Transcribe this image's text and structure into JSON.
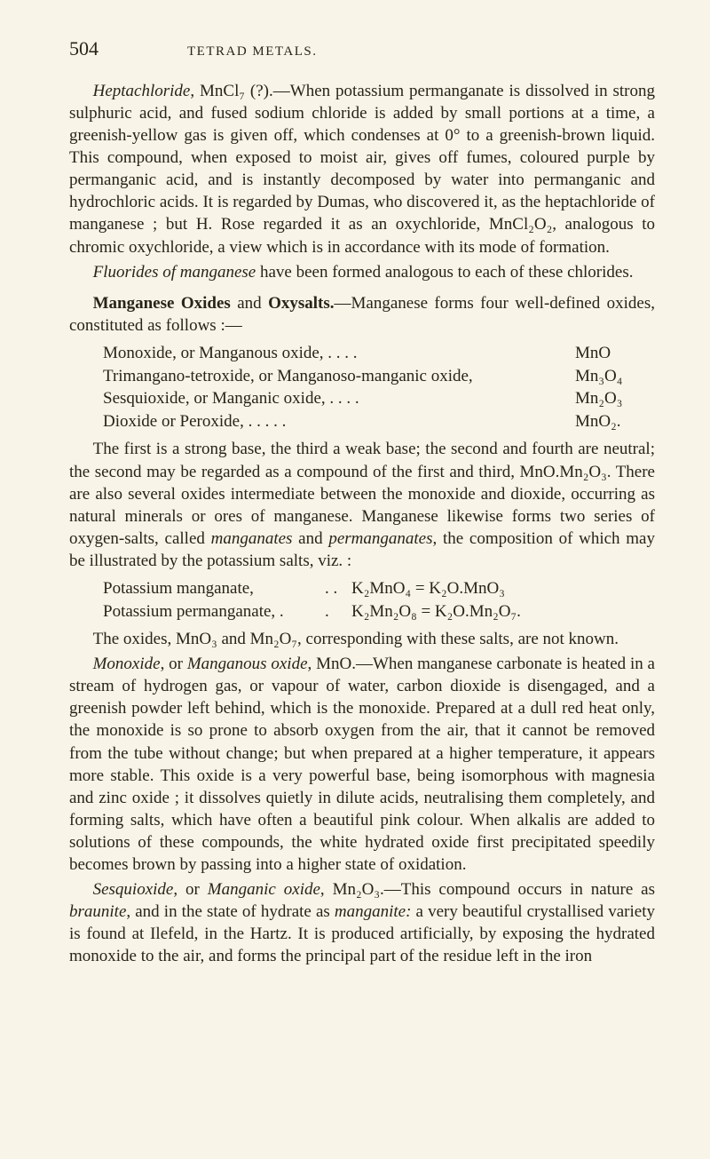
{
  "page_number": "504",
  "running_head": "TETRAD METALS.",
  "para1": "Heptachloride, MnCl₇ (?).—When potassium permanganate is dissolved in strong sulphuric acid, and fused sodium chloride is added by small portions at a time, a greenish-yellow gas is given off, which condenses at 0° to a greenish-brown liquid. This compound, when exposed to moist air, gives off fumes, coloured purple by permanganic acid, and is instantly decomposed by water into permanganic and hydrochloric acids. It is regarded by Dumas, who discovered it, as the heptachloride of manganese ; but H. Rose regarded it as an oxychloride, MnCl₂O₂, analogous to chromic oxychloride, a view which is in accordance with its mode of formation.",
  "para1_lead": "Heptachloride",
  "para2_lead": "Fluorides of manganese",
  "para2_rest": " have been formed analogous to each of these chlorides.",
  "para3_bold": "Manganese Oxides",
  "para3_mid": " and ",
  "para3_bold2": "Oxysalts.",
  "para3_rest": "—Manganese forms four well-defined oxides, constituted as follows :—",
  "oxides": [
    {
      "label": "Monoxide, or Manganous oxide,    .     .     .     .",
      "formula": "MnO"
    },
    {
      "label": "Trimangano-tetroxide, or Manganoso-manganic oxide,",
      "formula": "Mn₃O₄"
    },
    {
      "label": "Sesquioxide, or Manganic oxide,   .     .     .   .",
      "formula": "Mn₂O₃"
    },
    {
      "label": "Dioxide or Peroxide,                      .     .     .     .     .",
      "formula": "MnO₂."
    }
  ],
  "para4": "The first is a strong base, the third a weak base; the second and fourth are neutral; the second may be regarded as a compound of the first and third, MnO.Mn₂O₃. There are also several oxides intermediate between the monoxide and dioxide, occurring as natural minerals or ores of manganese. Manganese likewise forms two series of oxygen-salts, called manganates and permanganates, the composition of which may be illustrated by the potassium salts, viz. :",
  "eqs": [
    {
      "left": "Potassium manganate,",
      "dots": ".    .",
      "right": "K₂MnO₄  = K₂O.MnO₃"
    },
    {
      "left": "Potassium permanganate,  .",
      "dots": ".",
      "right": "K₂Mn₂O₈ = K₂O.Mn₂O₇."
    }
  ],
  "para5": "The oxides, MnO₃ and Mn₂O₇, corresponding with these salts, are not known.",
  "para6_lead": "Monoxide",
  "para6_mid": ", or ",
  "para6_lead2": "Manganous oxide",
  "para6_rest": ", MnO.—When manganese carbonate is heated in a stream of hydrogen gas, or vapour of water, carbon dioxide is disengaged, and a greenish powder left behind, which is the monoxide. Prepared at a dull red heat only, the monoxide is so prone to absorb oxygen from the air, that it cannot be removed from the tube without change; but when prepared at a higher temperature, it appears more stable. This oxide is a very powerful base, being isomorphous with magnesia and zinc oxide ; it dissolves quietly in dilute acids, neutralising them completely, and forming salts, which have often a beautiful pink colour. When alkalis are added to solutions of these compounds, the white hydrated oxide first precipitated speedily becomes brown by passing into a higher state of oxidation.",
  "para7_lead": "Sesquioxide",
  "para7_mid": ", or ",
  "para7_lead2": "Manganic oxide",
  "para7_rest": ", Mn₂O₃.—This compound occurs in nature as braunite, and in the state of hydrate as manganite: a very beautiful crystallised variety is found at Ilefeld, in the Hartz. It is produced artificially, by exposing the hydrated monoxide to the air, and forms the principal part of the residue left in the iron"
}
